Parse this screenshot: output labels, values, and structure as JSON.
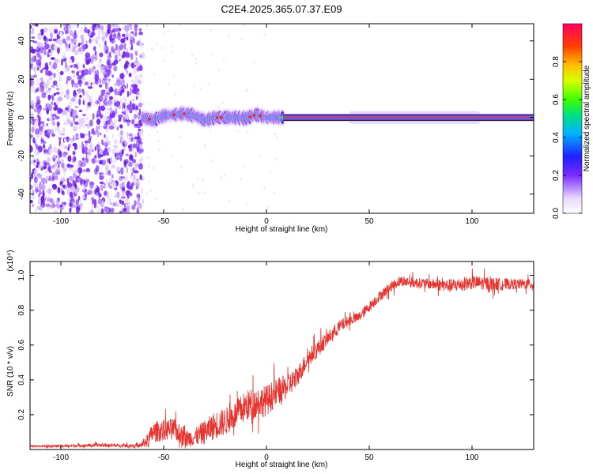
{
  "title": "C2E4.2025.365.07.37.E09",
  "chart_data": [
    {
      "type": "heatmap",
      "title": "C2E4.2025.365.07.37.E09",
      "xlabel": "Height of straight line (km)",
      "ylabel": "Frequency (Hz)",
      "xlim": [
        -115,
        130
      ],
      "ylim": [
        -50,
        49
      ],
      "xticks": [
        -100,
        -50,
        0,
        50,
        100
      ],
      "yticks": [
        -40,
        -20,
        0,
        20,
        40
      ],
      "noise_region_x": [
        -115,
        -60
      ],
      "signal_track": {
        "x": [
          -60,
          -55,
          -50,
          -45,
          -40,
          -35,
          -30,
          -25,
          -20,
          -15,
          -10,
          -5,
          0,
          5,
          10,
          50,
          100,
          130
        ],
        "freq_hz": [
          0,
          -1.5,
          1,
          1.5,
          2,
          1,
          -1.5,
          0,
          0,
          0,
          -0.5,
          1.5,
          0,
          0,
          0,
          0,
          0,
          0
        ]
      },
      "colorbar": {
        "label": "Normalized spectral amplitude",
        "ticks": [
          "0.0",
          "0.2",
          "0.4",
          "0.6",
          "0.8"
        ],
        "range": [
          0,
          1
        ]
      }
    },
    {
      "type": "line",
      "xlabel": "Height of straight line (km)",
      "ylabel": "SNR (10 * v/v)",
      "y_multiplier": "(x10⁴)",
      "xlim": [
        -115,
        130
      ],
      "ylim": [
        0,
        1.08
      ],
      "xticks": [
        -100,
        -50,
        0,
        50,
        100
      ],
      "yticks": [
        "0.2",
        "0.4",
        "0.6",
        "0.8",
        "1.0"
      ],
      "series": [
        {
          "name": "SNR",
          "color": "#e8322d",
          "x": [
            -115,
            -100,
            -80,
            -62,
            -58,
            -55,
            -50,
            -45,
            -40,
            -35,
            -30,
            -25,
            -20,
            -15,
            -10,
            -5,
            0,
            5,
            10,
            15,
            20,
            25,
            30,
            35,
            40,
            45,
            50,
            55,
            60,
            65,
            70,
            80,
            90,
            100,
            110,
            120,
            130
          ],
          "y": [
            0.02,
            0.02,
            0.025,
            0.02,
            0.05,
            0.1,
            0.11,
            0.12,
            0.06,
            0.07,
            0.1,
            0.14,
            0.16,
            0.2,
            0.25,
            0.27,
            0.28,
            0.33,
            0.36,
            0.42,
            0.52,
            0.58,
            0.64,
            0.7,
            0.74,
            0.76,
            0.82,
            0.88,
            0.93,
            0.97,
            0.96,
            0.95,
            0.94,
            0.96,
            0.95,
            0.95,
            0.95
          ],
          "noise_amplitude": [
            0.005,
            0.008,
            0.01,
            0.01,
            0.04,
            0.06,
            0.06,
            0.06,
            0.05,
            0.05,
            0.07,
            0.08,
            0.08,
            0.08,
            0.09,
            0.09,
            0.09,
            0.08,
            0.07,
            0.06,
            0.05,
            0.05,
            0.04,
            0.04,
            0.03,
            0.03,
            0.03,
            0.03,
            0.03,
            0.03,
            0.03,
            0.03,
            0.04,
            0.04,
            0.04,
            0.03,
            0.03
          ]
        }
      ]
    }
  ]
}
